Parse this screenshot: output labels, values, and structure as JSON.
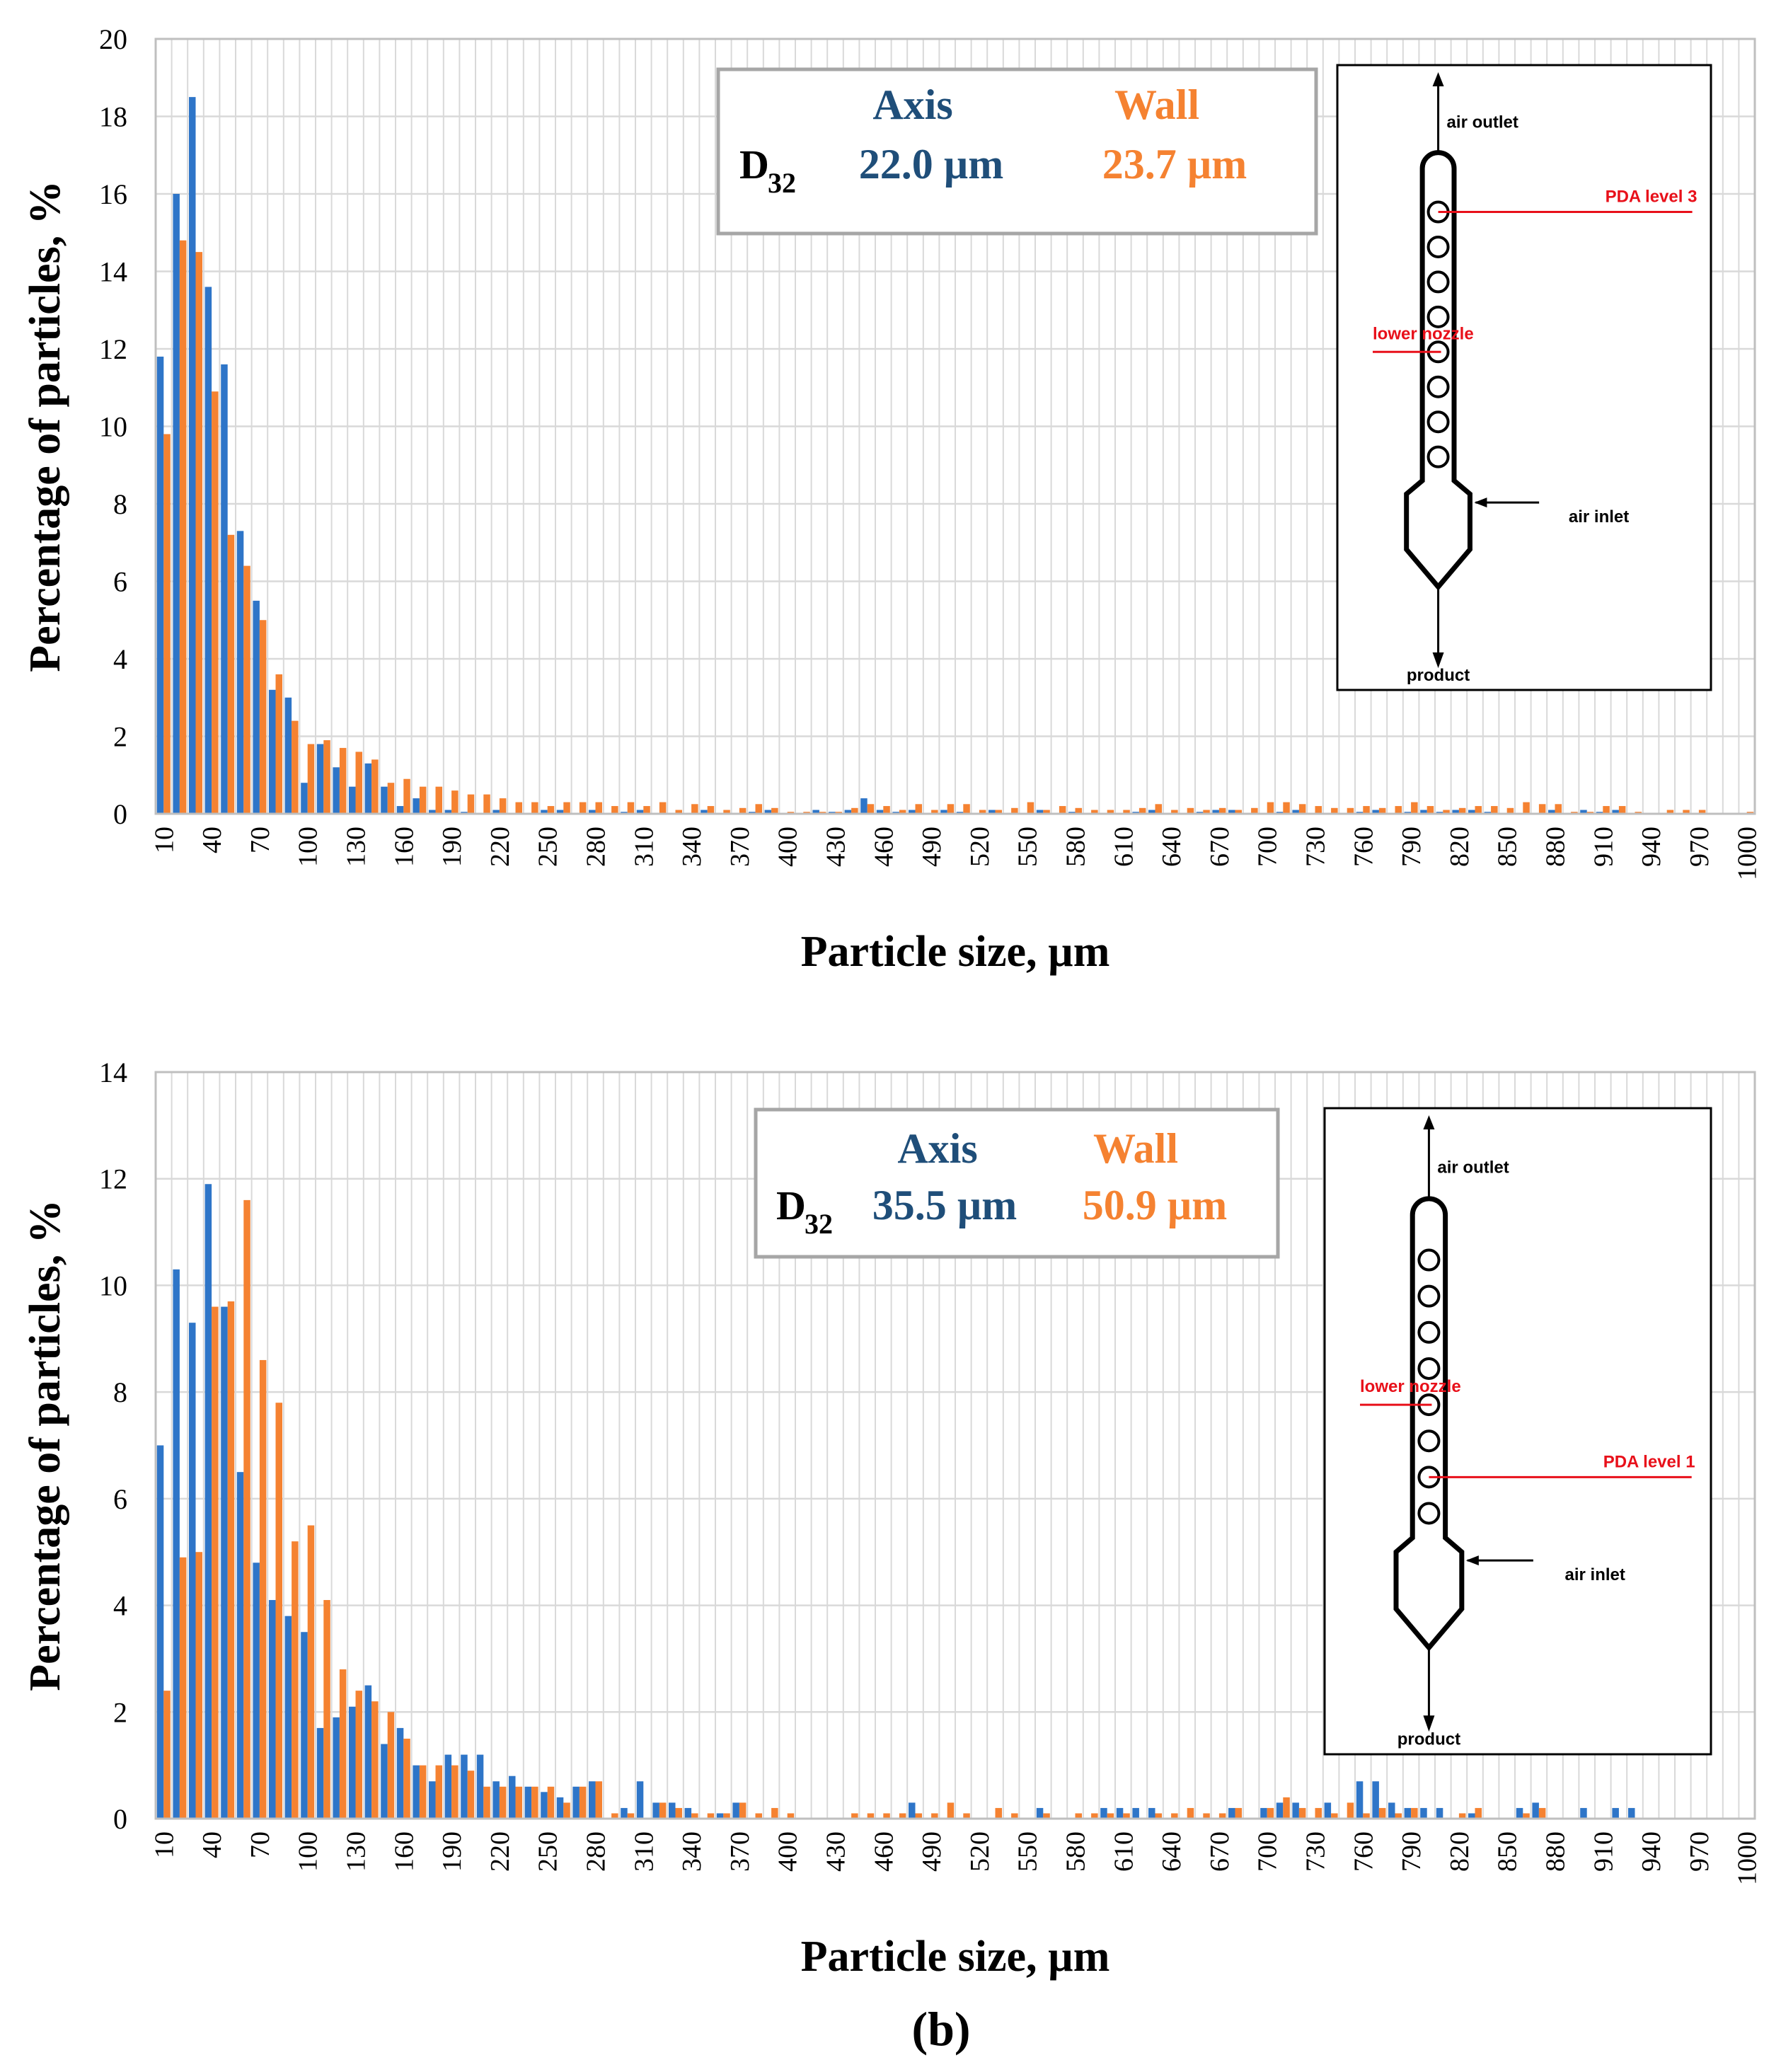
{
  "colors": {
    "axis": "#2e75c8",
    "wall": "#f58231",
    "axis_text": "#1f4e79",
    "wall_text": "#f58231",
    "grid": "#d9d9d9",
    "red": "#e8101a"
  },
  "panel_label": "(b)",
  "chart_data": [
    {
      "type": "bar",
      "ylabel": "Percentage of particles, %",
      "xlabel": "Particle size, µm",
      "ylim": [
        0,
        20
      ],
      "yticks": [
        "0",
        "2",
        "4",
        "6",
        "8",
        "10",
        "12",
        "14",
        "16",
        "18",
        "20"
      ],
      "xtick_labels": [
        "10",
        "40",
        "70",
        "100",
        "130",
        "160",
        "190",
        "220",
        "250",
        "280",
        "310",
        "340",
        "370",
        "400",
        "430",
        "460",
        "490",
        "520",
        "550",
        "580",
        "610",
        "640",
        "670",
        "700",
        "730",
        "760",
        "790",
        "820",
        "850",
        "880",
        "910",
        "940",
        "970",
        "1000"
      ],
      "bin_start": 10,
      "bin_step": 10,
      "bin_count": 100,
      "legend": {
        "axis_head": "Axis",
        "wall_head": "Wall",
        "d_label": "D",
        "d_sub": "32",
        "axis_value": "22.0 µm",
        "wall_value": "23.7 µm"
      },
      "inset": {
        "air_outlet": "air outlet",
        "pda": "PDA level 3",
        "nozzle": "lower nozzle",
        "air_inlet": "air inlet",
        "product": "product"
      },
      "series": [
        {
          "name": "Axis",
          "values": [
            11.8,
            16.0,
            18.5,
            13.6,
            11.6,
            7.3,
            5.5,
            3.2,
            3.0,
            0.8,
            1.8,
            1.2,
            0.7,
            1.3,
            0.7,
            0.2,
            0.4,
            0.1,
            0.1,
            0.05,
            0,
            0.1,
            0,
            0,
            0.1,
            0.1,
            0,
            0.1,
            0,
            0.05,
            0.1,
            0,
            0,
            0,
            0.1,
            0,
            0,
            0.05,
            0.1,
            0,
            0,
            0.1,
            0.05,
            0.1,
            0.4,
            0.1,
            0.05,
            0.1,
            0,
            0.1,
            0.05,
            0,
            0.1,
            0,
            0,
            0.1,
            0,
            0.05,
            0,
            0,
            0,
            0.05,
            0.1,
            0,
            0,
            0.05,
            0.1,
            0.1,
            0,
            0,
            0.05,
            0.1,
            0,
            0,
            0,
            0.05,
            0.1,
            0,
            0.05,
            0.1,
            0.05,
            0.1,
            0.1,
            0.05,
            0,
            0,
            0,
            0.1,
            0,
            0.1,
            0.05,
            0.1,
            0,
            0,
            0,
            0,
            0,
            0,
            0,
            0
          ]
        },
        {
          "name": "Wall",
          "values": [
            9.8,
            14.8,
            14.5,
            10.9,
            7.2,
            6.4,
            5.0,
            3.6,
            2.4,
            1.8,
            1.9,
            1.7,
            1.6,
            1.4,
            0.8,
            0.9,
            0.7,
            0.7,
            0.6,
            0.5,
            0.5,
            0.4,
            0.3,
            0.3,
            0.2,
            0.3,
            0.3,
            0.3,
            0.2,
            0.3,
            0.2,
            0.3,
            0.1,
            0.25,
            0.2,
            0.1,
            0.15,
            0.25,
            0.15,
            0.05,
            0.05,
            0.05,
            0.05,
            0.15,
            0.25,
            0.2,
            0.1,
            0.25,
            0.1,
            0.25,
            0.25,
            0.1,
            0.1,
            0.15,
            0.3,
            0.1,
            0.2,
            0.15,
            0.1,
            0.1,
            0.1,
            0.15,
            0.25,
            0.1,
            0.15,
            0.1,
            0.15,
            0.1,
            0.15,
            0.3,
            0.3,
            0.25,
            0.2,
            0.15,
            0.15,
            0.2,
            0.15,
            0.2,
            0.3,
            0.2,
            0.1,
            0.15,
            0.2,
            0.2,
            0.15,
            0.3,
            0.25,
            0.25,
            0.05,
            0.05,
            0.2,
            0.2,
            0.05,
            0,
            0.1,
            0.1,
            0.1,
            0,
            0,
            0.05
          ]
        }
      ]
    },
    {
      "type": "bar",
      "ylabel": "Percentage of particles, %",
      "xlabel": "Particle size, µm",
      "ylim": [
        0,
        14
      ],
      "yticks": [
        "0",
        "2",
        "4",
        "6",
        "8",
        "10",
        "12",
        "14"
      ],
      "xtick_labels": [
        "10",
        "40",
        "70",
        "100",
        "130",
        "160",
        "190",
        "220",
        "250",
        "280",
        "310",
        "340",
        "370",
        "400",
        "430",
        "460",
        "490",
        "520",
        "550",
        "580",
        "610",
        "640",
        "670",
        "700",
        "730",
        "760",
        "790",
        "820",
        "850",
        "880",
        "910",
        "940",
        "970",
        "1000"
      ],
      "bin_start": 10,
      "bin_step": 10,
      "bin_count": 100,
      "legend": {
        "axis_head": "Axis",
        "wall_head": "Wall",
        "d_label": "D",
        "d_sub": "32",
        "axis_value": "35.5 µm",
        "wall_value": "50.9 µm"
      },
      "inset": {
        "air_outlet": "air outlet",
        "pda": "PDA level 1",
        "nozzle": "lower nozzle",
        "air_inlet": "air inlet",
        "product": "product"
      },
      "series": [
        {
          "name": "Axis",
          "values": [
            7.0,
            10.3,
            9.3,
            11.9,
            9.6,
            6.5,
            4.8,
            4.1,
            3.8,
            3.5,
            1.7,
            1.9,
            2.1,
            2.5,
            1.4,
            1.7,
            1.0,
            0.7,
            1.2,
            1.2,
            1.2,
            0.7,
            0.8,
            0.6,
            0.5,
            0.4,
            0.6,
            0.7,
            0,
            0.2,
            0.7,
            0.3,
            0.3,
            0.2,
            0,
            0.1,
            0.3,
            0,
            0,
            0,
            0,
            0,
            0,
            0,
            0,
            0,
            0,
            0.3,
            0,
            0,
            0,
            0,
            0,
            0,
            0,
            0.2,
            0,
            0,
            0,
            0.2,
            0.2,
            0.2,
            0.2,
            0,
            0,
            0,
            0,
            0.2,
            0,
            0.2,
            0.3,
            0.3,
            0,
            0.3,
            0,
            0.7,
            0.7,
            0.3,
            0.2,
            0.2,
            0.2,
            0,
            0.1,
            0,
            0,
            0.2,
            0.3,
            0,
            0,
            0.2,
            0,
            0.2,
            0.2,
            0,
            0,
            0,
            0,
            0,
            0,
            0
          ]
        },
        {
          "name": "Wall",
          "values": [
            2.4,
            4.9,
            5.0,
            9.6,
            9.7,
            11.6,
            8.6,
            7.8,
            5.2,
            5.5,
            4.1,
            2.8,
            2.4,
            2.2,
            2.0,
            1.5,
            1.0,
            1.0,
            1.0,
            0.9,
            0.6,
            0.6,
            0.6,
            0.6,
            0.6,
            0.3,
            0.6,
            0.7,
            0.1,
            0.1,
            0,
            0.3,
            0.2,
            0.1,
            0.1,
            0.1,
            0.3,
            0.1,
            0.2,
            0.1,
            0,
            0,
            0,
            0.1,
            0.1,
            0.1,
            0.1,
            0.1,
            0.1,
            0.3,
            0.1,
            0,
            0.2,
            0.1,
            0,
            0.1,
            0,
            0.1,
            0.1,
            0.1,
            0.1,
            0,
            0.1,
            0.1,
            0.2,
            0.1,
            0.1,
            0.2,
            0,
            0.2,
            0.4,
            0.2,
            0.2,
            0.1,
            0.3,
            0.1,
            0.2,
            0.1,
            0.2,
            0,
            0,
            0.1,
            0.2,
            0,
            0,
            0.1,
            0.2,
            0,
            0,
            0,
            0,
            0,
            0,
            0,
            0,
            0,
            0,
            0,
            0,
            0
          ]
        }
      ]
    }
  ]
}
